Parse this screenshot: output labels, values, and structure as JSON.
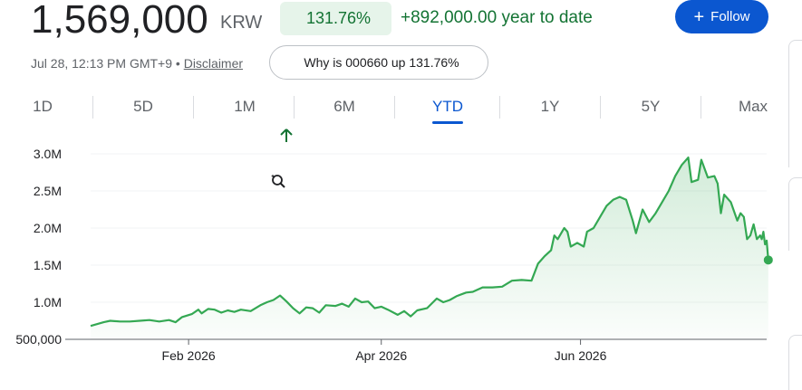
{
  "header": {
    "price": "1,569,000",
    "currency": "KRW",
    "change_pct": "131.76%",
    "change_abs": "+892,000.00 year to date",
    "follow_label": "Follow"
  },
  "meta": {
    "timestamp": "Jul 28, 12:13 PM GMT+9 •",
    "disclaimer": "Disclaimer"
  },
  "why_button": {
    "label": "Why is 000660 up 131.76%"
  },
  "tabs": [
    {
      "label": "1D"
    },
    {
      "label": "5D"
    },
    {
      "label": "1M"
    },
    {
      "label": "6M"
    },
    {
      "label": "YTD"
    },
    {
      "label": "1Y"
    },
    {
      "label": "5Y"
    },
    {
      "label": "Max"
    }
  ],
  "active_tab": "YTD",
  "colors": {
    "accent": "#0b57d0",
    "positive": "#137333",
    "line": "#34a853"
  },
  "chart_data": {
    "type": "area",
    "x_unit": "date",
    "yticks": [
      500000,
      1000000,
      1500000,
      2000000,
      2500000,
      3000000
    ],
    "ytick_labels": [
      "500,000",
      "1.0M",
      "1.5M",
      "2.0M",
      "2.5M",
      "3.0M"
    ],
    "xtick_labels": [
      {
        "date": "2026-02-01",
        "label": "Feb 2026"
      },
      {
        "date": "2026-04-01",
        "label": "Apr 2026"
      },
      {
        "date": "2026-06-01",
        "label": "Jun 2026"
      }
    ],
    "xlim": [
      "2026-01-02",
      "2026-07-28"
    ],
    "ylim": [
      500000,
      3000000
    ],
    "grid": true,
    "series": [
      {
        "points": [
          [
            "2026-01-02",
            680000
          ],
          [
            "2026-01-06",
            730000
          ],
          [
            "2026-01-08",
            750000
          ],
          [
            "2026-01-11",
            740000
          ],
          [
            "2026-01-14",
            740000
          ],
          [
            "2026-01-17",
            750000
          ],
          [
            "2026-01-20",
            760000
          ],
          [
            "2026-01-23",
            740000
          ],
          [
            "2026-01-26",
            760000
          ],
          [
            "2026-01-28",
            730000
          ],
          [
            "2026-01-30",
            800000
          ],
          [
            "2026-02-02",
            840000
          ],
          [
            "2026-02-04",
            900000
          ],
          [
            "2026-02-05",
            850000
          ],
          [
            "2026-02-07",
            910000
          ],
          [
            "2026-02-09",
            900000
          ],
          [
            "2026-02-11",
            860000
          ],
          [
            "2026-02-13",
            890000
          ],
          [
            "2026-02-15",
            870000
          ],
          [
            "2026-02-17",
            900000
          ],
          [
            "2026-02-20",
            880000
          ],
          [
            "2026-02-23",
            960000
          ],
          [
            "2026-02-25",
            1000000
          ],
          [
            "2026-02-27",
            1030000
          ],
          [
            "2026-03-01",
            1090000
          ],
          [
            "2026-03-03",
            1010000
          ],
          [
            "2026-03-05",
            920000
          ],
          [
            "2026-03-07",
            850000
          ],
          [
            "2026-03-09",
            930000
          ],
          [
            "2026-03-11",
            920000
          ],
          [
            "2026-03-13",
            860000
          ],
          [
            "2026-03-15",
            960000
          ],
          [
            "2026-03-18",
            950000
          ],
          [
            "2026-03-20",
            980000
          ],
          [
            "2026-03-22",
            940000
          ],
          [
            "2026-03-24",
            1050000
          ],
          [
            "2026-03-26",
            1000000
          ],
          [
            "2026-03-28",
            1010000
          ],
          [
            "2026-03-30",
            920000
          ],
          [
            "2026-04-01",
            940000
          ],
          [
            "2026-04-03",
            900000
          ],
          [
            "2026-04-06",
            830000
          ],
          [
            "2026-04-08",
            880000
          ],
          [
            "2026-04-10",
            810000
          ],
          [
            "2026-04-12",
            890000
          ],
          [
            "2026-04-15",
            920000
          ],
          [
            "2026-04-18",
            1050000
          ],
          [
            "2026-04-20",
            1000000
          ],
          [
            "2026-04-22",
            1030000
          ],
          [
            "2026-04-24",
            1080000
          ],
          [
            "2026-04-27",
            1130000
          ],
          [
            "2026-04-29",
            1140000
          ],
          [
            "2026-05-02",
            1200000
          ],
          [
            "2026-05-05",
            1200000
          ],
          [
            "2026-05-08",
            1210000
          ],
          [
            "2026-05-11",
            1290000
          ],
          [
            "2026-05-14",
            1300000
          ],
          [
            "2026-05-17",
            1290000
          ],
          [
            "2026-05-19",
            1520000
          ],
          [
            "2026-05-21",
            1620000
          ],
          [
            "2026-05-23",
            1700000
          ],
          [
            "2026-05-24",
            1900000
          ],
          [
            "2026-05-25",
            1850000
          ],
          [
            "2026-05-27",
            2000000
          ],
          [
            "2026-05-28",
            1950000
          ],
          [
            "2026-05-29",
            1750000
          ],
          [
            "2026-05-31",
            1800000
          ],
          [
            "2026-06-02",
            1750000
          ],
          [
            "2026-06-03",
            1950000
          ],
          [
            "2026-06-05",
            2000000
          ],
          [
            "2026-06-07",
            2150000
          ],
          [
            "2026-06-09",
            2300000
          ],
          [
            "2026-06-11",
            2380000
          ],
          [
            "2026-06-13",
            2420000
          ],
          [
            "2026-06-15",
            2380000
          ],
          [
            "2026-06-17",
            2100000
          ],
          [
            "2026-06-18",
            1930000
          ],
          [
            "2026-06-20",
            2250000
          ],
          [
            "2026-06-22",
            2080000
          ],
          [
            "2026-06-24",
            2200000
          ],
          [
            "2026-06-26",
            2350000
          ],
          [
            "2026-06-28",
            2500000
          ],
          [
            "2026-06-30",
            2700000
          ],
          [
            "2026-07-02",
            2850000
          ],
          [
            "2026-07-04",
            2950000
          ],
          [
            "2026-07-05",
            2620000
          ],
          [
            "2026-07-07",
            2650000
          ],
          [
            "2026-07-08",
            2920000
          ],
          [
            "2026-07-10",
            2680000
          ],
          [
            "2026-07-12",
            2700000
          ],
          [
            "2026-07-13",
            2600000
          ],
          [
            "2026-07-14",
            2200000
          ],
          [
            "2026-07-15",
            2450000
          ],
          [
            "2026-07-17",
            2350000
          ],
          [
            "2026-07-19",
            2100000
          ],
          [
            "2026-07-20",
            2200000
          ],
          [
            "2026-07-21",
            2150000
          ],
          [
            "2026-07-22",
            1850000
          ],
          [
            "2026-07-23",
            1900000
          ],
          [
            "2026-07-24",
            2050000
          ],
          [
            "2026-07-25",
            1850000
          ],
          [
            "2026-07-26",
            1900000
          ],
          [
            "2026-07-26",
            1850000
          ],
          [
            "2026-07-27",
            1950000
          ],
          [
            "2026-07-27",
            1780000
          ],
          [
            "2026-07-28",
            1830000
          ],
          [
            "2026-07-28",
            1569000
          ]
        ]
      }
    ]
  }
}
